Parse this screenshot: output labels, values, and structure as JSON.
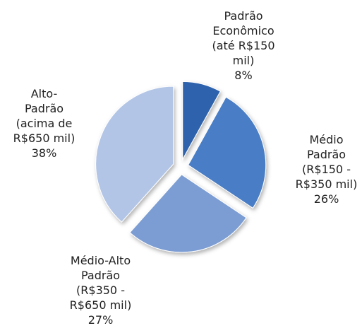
{
  "chart_data": {
    "type": "pie",
    "categories": [
      "Padrão\nEconômico\n(até R$150\nmil)",
      "Médio\nPadrão\n(R$150 -\nR$350 mil)",
      "Médio-Alto\nPadrão\n(R$350 -\nR$650 mil)",
      "Alto-\nPadrão\n(acima de\nR$650 mil)"
    ],
    "values": [
      8,
      26,
      27,
      38
    ],
    "value_labels": [
      "8%",
      "26%",
      "27%",
      "38%"
    ],
    "colors": [
      "#2f62ad",
      "#4a7ec6",
      "#7c9dd3",
      "#b2c5e6"
    ]
  }
}
